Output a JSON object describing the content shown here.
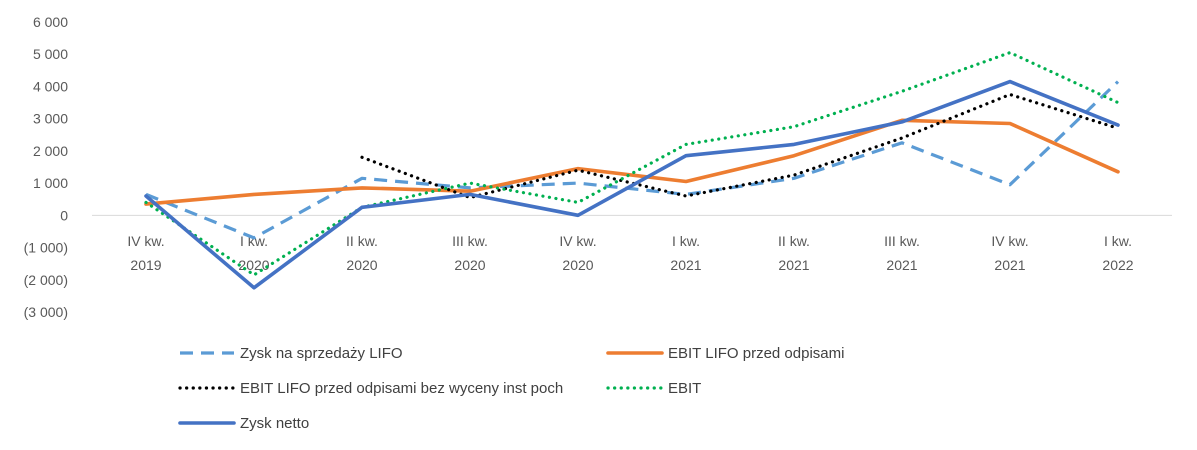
{
  "chart_data": {
    "type": "line",
    "categories": [
      [
        "IV kw.",
        "2019"
      ],
      [
        "I kw.",
        "2020"
      ],
      [
        "II kw.",
        "2020"
      ],
      [
        "III kw.",
        "2020"
      ],
      [
        "IV kw.",
        "2020"
      ],
      [
        "I kw.",
        "2021"
      ],
      [
        "II kw.",
        "2021"
      ],
      [
        "III kw.",
        "2021"
      ],
      [
        "IV kw.",
        "2021"
      ],
      [
        "I kw.",
        "2022"
      ]
    ],
    "ylim": [
      -3000,
      6000
    ],
    "yticks": [
      6000,
      5000,
      4000,
      3000,
      2000,
      1000,
      0,
      -1000,
      -2000,
      -3000
    ],
    "ytick_labels": [
      "6 000",
      "5 000",
      "4 000",
      "3 000",
      "2 000",
      "1 000",
      "0",
      "(1 000)",
      "(2 000)",
      "(3 000)"
    ],
    "grid": false,
    "legend_position": "bottom",
    "series": [
      {
        "name": "Zysk na sprzedaży LIFO",
        "color": "#5b9bd5",
        "style": "dashed",
        "values": [
          650,
          -700,
          1150,
          850,
          1000,
          650,
          1150,
          2250,
          950,
          4150
        ]
      },
      {
        "name": "EBIT LIFO przed odpisami",
        "color": "#ed7d31",
        "style": "solid",
        "values": [
          350,
          650,
          850,
          750,
          1450,
          1050,
          1850,
          2950,
          2850,
          1350
        ]
      },
      {
        "name": "EBIT LIFO przed odpisami bez wyceny inst poch",
        "color": "#000000",
        "style": "dotted",
        "values": [
          null,
          null,
          1800,
          550,
          1400,
          600,
          1250,
          2400,
          3750,
          2700
        ]
      },
      {
        "name": "EBIT",
        "color": "#00b050",
        "style": "dotted",
        "values": [
          400,
          -1850,
          250,
          1000,
          400,
          2200,
          2750,
          3850,
          5050,
          3500
        ]
      },
      {
        "name": "Zysk netto",
        "color": "#4472c4",
        "style": "solid",
        "values": [
          600,
          -2250,
          250,
          650,
          0,
          1850,
          2200,
          2900,
          4150,
          2800
        ]
      }
    ]
  }
}
